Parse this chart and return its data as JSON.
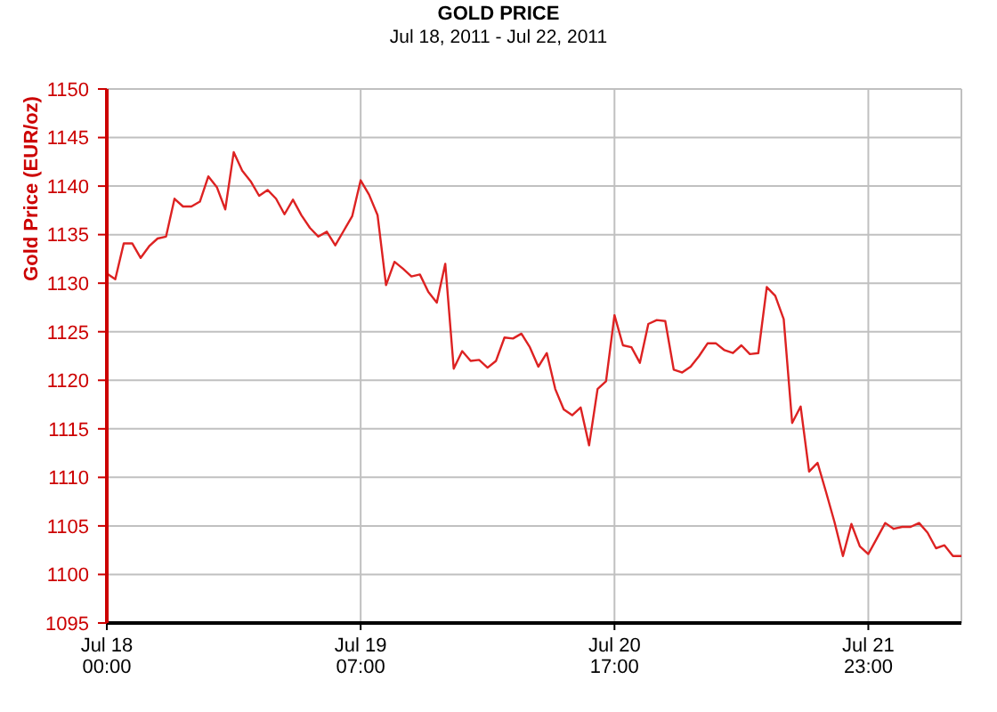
{
  "chart_data": {
    "type": "line",
    "title": "GOLD PRICE",
    "subtitle": "Jul 18, 2011 - Jul 22, 2011",
    "ylabel": "Gold Price (EUR/oz)",
    "categories": [
      "Jul 18\n00:00",
      null,
      null,
      null,
      null,
      null,
      null,
      null,
      null,
      null,
      null,
      null,
      null,
      null,
      null,
      null,
      null,
      null,
      null,
      null,
      null,
      null,
      null,
      null,
      null,
      null,
      null,
      null,
      null,
      null,
      "Jul 19\n07:00",
      null,
      null,
      null,
      null,
      null,
      null,
      null,
      null,
      null,
      null,
      null,
      null,
      null,
      null,
      null,
      null,
      null,
      null,
      null,
      null,
      null,
      null,
      null,
      null,
      null,
      null,
      null,
      null,
      null,
      "Jul 20\n17:00",
      null,
      null,
      null,
      null,
      null,
      null,
      null,
      null,
      null,
      null,
      null,
      null,
      null,
      null,
      null,
      null,
      null,
      null,
      null,
      null,
      null,
      null,
      null,
      null,
      null,
      null,
      null,
      null,
      null,
      "Jul 21\n23:00",
      null,
      null,
      null,
      null,
      null,
      null,
      null,
      null,
      null,
      null,
      null
    ],
    "color": "#dd2222",
    "values": [
      1131.0,
      1130.4,
      1134.1,
      1134.1,
      1132.6,
      1133.8,
      1134.6,
      1134.8,
      1138.7,
      1137.9,
      1137.9,
      1138.4,
      1141.0,
      1139.9,
      1137.6,
      1143.5,
      1141.6,
      1140.5,
      1139.0,
      1139.6,
      1138.7,
      1137.1,
      1138.6,
      1137.0,
      1135.7,
      1134.8,
      1135.3,
      1133.9,
      1135.4,
      1136.9,
      1140.6,
      1139.1,
      1137.0,
      1129.8,
      1132.2,
      1131.5,
      1130.7,
      1130.9,
      1129.1,
      1128.0,
      1132.0,
      1121.2,
      1123.0,
      1122.0,
      1122.1,
      1121.3,
      1122.0,
      1124.4,
      1124.3,
      1124.8,
      1123.4,
      1121.4,
      1122.8,
      1119.1,
      1117.0,
      1116.4,
      1117.2,
      1113.3,
      1119.1,
      1119.9,
      1126.7,
      1123.6,
      1123.4,
      1121.8,
      1125.8,
      1126.2,
      1126.1,
      1121.1,
      1120.8,
      1121.4,
      1122.5,
      1123.8,
      1123.8,
      1123.1,
      1122.8,
      1123.6,
      1122.7,
      1122.8,
      1129.6,
      1128.7,
      1126.3,
      1115.6,
      1117.3,
      1110.6,
      1111.5,
      1108.5,
      1105.4,
      1101.9,
      1105.2,
      1102.9,
      1102.1,
      1103.7,
      1105.3,
      1104.7,
      1104.9,
      1104.9,
      1105.3,
      1104.3,
      1102.7,
      1103.0,
      1101.9,
      1101.9
    ],
    "ylim": [
      1095,
      1150
    ],
    "yticks": [
      1095,
      1100,
      1105,
      1110,
      1115,
      1120,
      1125,
      1130,
      1135,
      1140,
      1145,
      1150
    ],
    "grid": true
  }
}
